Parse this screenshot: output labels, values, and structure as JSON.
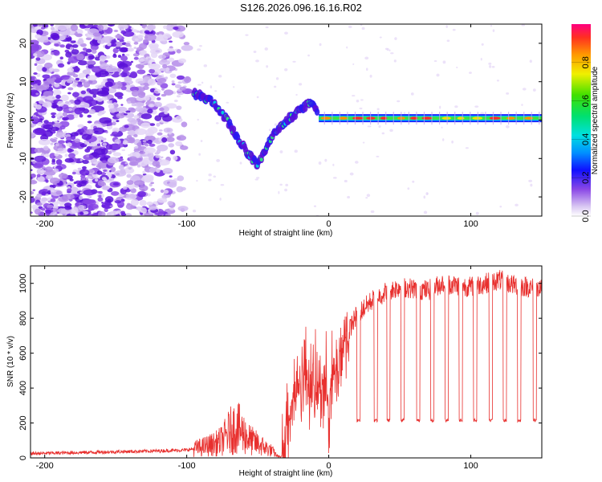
{
  "title": "S126.2026.096.16.16.R02",
  "chart_data": [
    {
      "type": "heatmap",
      "name": "spectrogram",
      "xlabel": "Height of straight line (km)",
      "ylabel": "Frequency (Hz)",
      "xlim": [
        -210,
        150
      ],
      "ylim": [
        -25,
        25
      ],
      "xticks": [
        -200,
        -100,
        0,
        100
      ],
      "yticks": [
        -20,
        -10,
        0,
        10,
        20
      ],
      "noise_region": {
        "x_range": [
          -210,
          -95
        ],
        "y_range": [
          -25,
          25
        ]
      },
      "signal_track": [
        {
          "x": -95,
          "y": 7
        },
        {
          "x": -88,
          "y": 6
        },
        {
          "x": -80,
          "y": 4
        },
        {
          "x": -72,
          "y": 0
        },
        {
          "x": -65,
          "y": -4
        },
        {
          "x": -58,
          "y": -8
        },
        {
          "x": -50,
          "y": -12
        },
        {
          "x": -45,
          "y": -8
        },
        {
          "x": -38,
          "y": -3
        },
        {
          "x": -30,
          "y": 0
        },
        {
          "x": -22,
          "y": 2
        },
        {
          "x": -12,
          "y": 5
        },
        {
          "x": -7,
          "y": 1
        },
        {
          "x": 0,
          "y": 0.5
        },
        {
          "x": 150,
          "y": 0.5
        }
      ],
      "colorbar": {
        "label": "Normalized spectral amplitude",
        "ticks": [
          "0.0",
          "0.2",
          "0.4",
          "0.6",
          "0.8"
        ],
        "range": [
          0,
          1
        ]
      }
    },
    {
      "type": "line",
      "name": "snr",
      "xlabel": "Height of straight line (km)",
      "ylabel": "SNR (10 * v/v)",
      "xlim": [
        -210,
        150
      ],
      "ylim": [
        0,
        1100
      ],
      "xticks": [
        -200,
        -100,
        0,
        100
      ],
      "yticks": [
        0,
        200,
        400,
        600,
        800,
        1000
      ],
      "color": "#e8302e",
      "series": [
        {
          "name": "SNR",
          "x": [
            -210,
            -180,
            -150,
            -120,
            -100,
            -90,
            -80,
            -75,
            -70,
            -65,
            -60,
            -55,
            -50,
            -45,
            -40,
            -36,
            -33,
            -30,
            -25,
            -20,
            -15,
            -10,
            -5,
            0,
            5,
            10,
            15,
            20,
            30,
            40,
            50,
            60,
            70,
            80,
            90,
            100,
            110,
            120,
            130,
            140,
            150
          ],
          "values": [
            25,
            30,
            35,
            40,
            45,
            60,
            80,
            100,
            150,
            180,
            140,
            100,
            80,
            60,
            40,
            10,
            5,
            200,
            350,
            450,
            500,
            350,
            450,
            350,
            500,
            650,
            750,
            820,
            900,
            950,
            980,
            970,
            960,
            1000,
            990,
            980,
            1000,
            1020,
            990,
            980,
            960
          ]
        }
      ],
      "dropouts": [
        21,
        33,
        42,
        52,
        63,
        73,
        83,
        93,
        103,
        114,
        124,
        134,
        145
      ],
      "dropout_level": 215
    }
  ]
}
